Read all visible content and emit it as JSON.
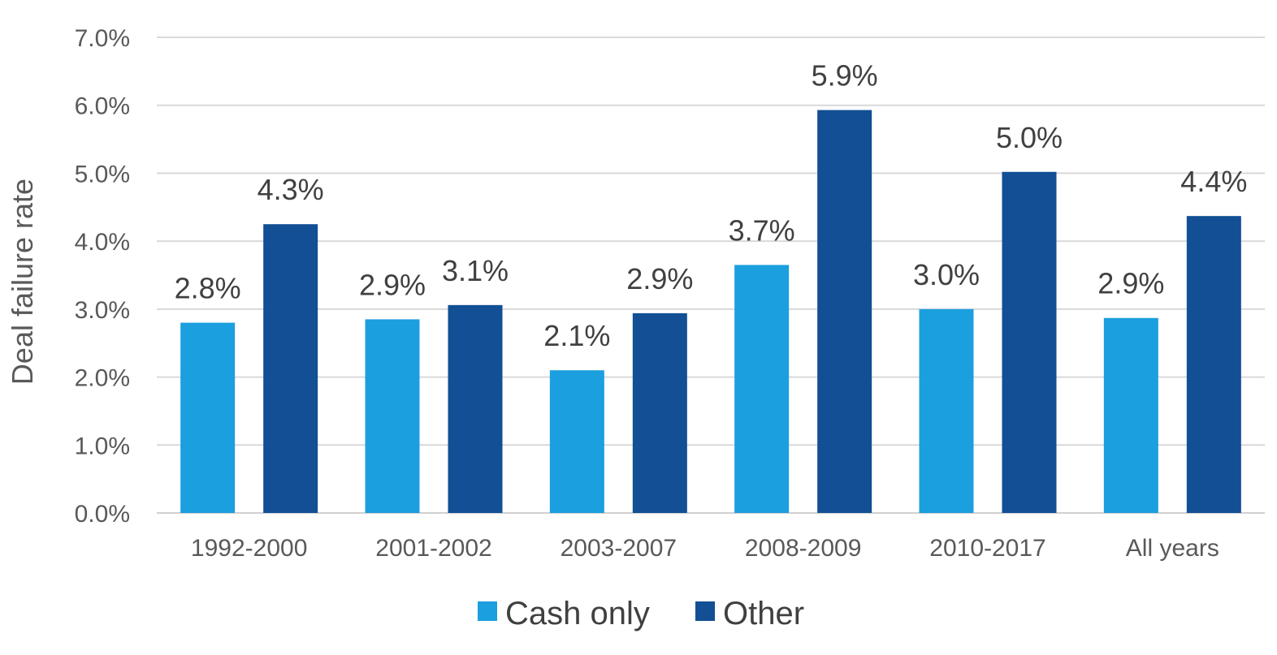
{
  "chart_data": {
    "type": "bar",
    "title": "",
    "xlabel": "",
    "ylabel": "Deal failure rate",
    "ylim": [
      0,
      7
    ],
    "ytick_values": [
      0,
      1,
      2,
      3,
      4,
      5,
      6,
      7
    ],
    "ytick_labels": [
      "0.0%",
      "1.0%",
      "2.0%",
      "3.0%",
      "4.0%",
      "5.0%",
      "6.0%",
      "7.0%"
    ],
    "categories": [
      "1992-2000",
      "2001-2002",
      "2003-2007",
      "2008-2009",
      "2010-2017",
      "All years"
    ],
    "grid": true,
    "legend_position": "bottom",
    "series": [
      {
        "name": "Cash only",
        "color": "#1B9FDE",
        "values": [
          2.8,
          2.85,
          2.1,
          3.65,
          3.0,
          2.87
        ],
        "labels": [
          "2.8%",
          "2.9%",
          "2.1%",
          "3.7%",
          "3.0%",
          "2.9%"
        ]
      },
      {
        "name": "Other",
        "color": "#124F94",
        "values": [
          4.25,
          3.06,
          2.94,
          5.93,
          5.02,
          4.37
        ],
        "labels": [
          "4.3%",
          "3.1%",
          "2.9%",
          "5.9%",
          "5.0%",
          "4.4%"
        ]
      }
    ]
  }
}
